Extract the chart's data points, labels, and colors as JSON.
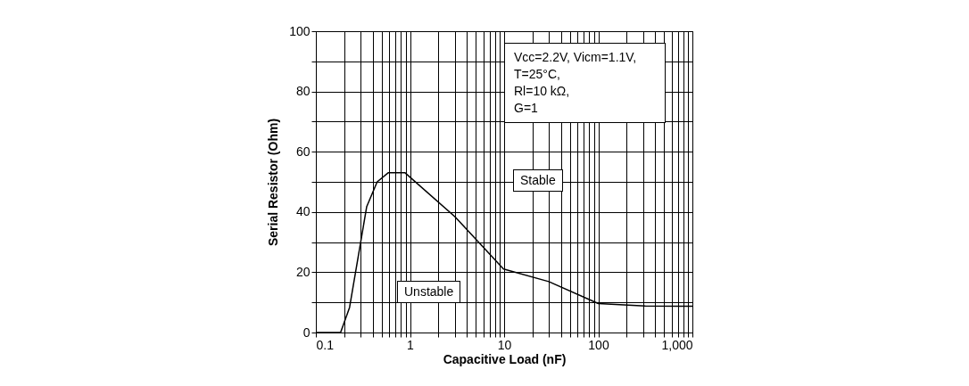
{
  "chart_data": {
    "type": "line",
    "xlabel": "Capacitive Load (nF)",
    "ylabel": "Serial Resistor (Ohm)",
    "log": "x",
    "x": [
      0.1,
      0.183,
      0.228,
      0.347,
      0.448,
      0.586,
      0.887,
      3.01,
      9.85,
      29.8,
      100,
      316,
      1000
    ],
    "series": [
      {
        "color": "#000000",
        "values": [
          0,
          0,
          8.3,
          41.8,
          50,
          53,
          53,
          38.4,
          21.1,
          16.9,
          9.6,
          8.8,
          8.7
        ]
      }
    ],
    "xlim": [
      0.1,
      1000
    ],
    "xticks": [
      0.1,
      {
        "value": 0.2,
        "label": null
      },
      {
        "value": 0.3,
        "label": null
      },
      {
        "value": 0.4,
        "label": null
      },
      {
        "value": 0.5,
        "label": null
      },
      {
        "value": 0.6,
        "label": null
      },
      {
        "value": 0.7,
        "label": null
      },
      {
        "value": 0.8,
        "label": null
      },
      {
        "value": 0.9,
        "label": null
      },
      1,
      {
        "value": 2,
        "label": null
      },
      {
        "value": 3,
        "label": null
      },
      {
        "value": 4,
        "label": null
      },
      {
        "value": 5,
        "label": null
      },
      {
        "value": 6,
        "label": null
      },
      {
        "value": 7,
        "label": null
      },
      {
        "value": 8,
        "label": null
      },
      {
        "value": 9,
        "label": null
      },
      10,
      {
        "value": 20,
        "label": null
      },
      {
        "value": 30,
        "label": null
      },
      {
        "value": 40,
        "label": null
      },
      {
        "value": 50,
        "label": null
      },
      {
        "value": 60,
        "label": null
      },
      {
        "value": 70,
        "label": null
      },
      {
        "value": 80,
        "label": null
      },
      {
        "value": 90,
        "label": null
      },
      100,
      {
        "value": 200,
        "label": null
      },
      {
        "value": 300,
        "label": null
      },
      {
        "value": 400,
        "label": null
      },
      {
        "value": 500,
        "label": null
      },
      {
        "value": 600,
        "label": null
      },
      {
        "value": 700,
        "label": null
      },
      {
        "value": 800,
        "label": null
      },
      {
        "value": 900,
        "label": null
      },
      {
        "value": 1000,
        "label": "1,000"
      }
    ],
    "ylim": [
      0,
      100
    ],
    "yticks": [
      0,
      {
        "value": 10,
        "label": null
      },
      20,
      {
        "value": 30,
        "label": null
      },
      40,
      {
        "value": 50,
        "label": null
      },
      60,
      {
        "value": 70,
        "label": null
      },
      80,
      {
        "value": 90,
        "label": null
      },
      100
    ],
    "grid": true,
    "legend": false,
    "marker": "none",
    "line_style": "solid",
    "annotations": [
      "Vcc=2.2V, Vicm=1.1V,\nT=25°C,\nRl=10 kΩ,\nG=1",
      "Stable",
      "Unstable"
    ]
  }
}
